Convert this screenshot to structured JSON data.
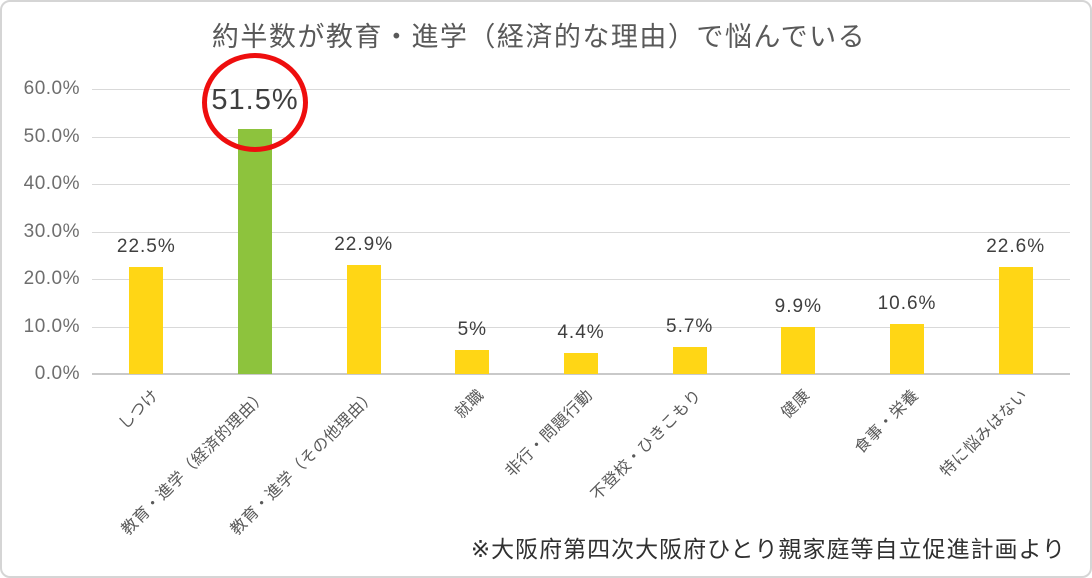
{
  "chart_data": {
    "type": "bar",
    "title": "約半数が教育・進学（経済的な理由）で悩んでいる",
    "categories": [
      "しつけ",
      "教育・進学（経済的理由）",
      "教育・進学（その他理由）",
      "就職",
      "非行・問題行動",
      "不登校・ひきこもり",
      "健康",
      "食事・栄養",
      "特に悩みはない"
    ],
    "values": [
      22.5,
      51.5,
      22.9,
      5,
      4.4,
      5.7,
      9.9,
      10.6,
      22.6
    ],
    "value_labels": [
      "22.5%",
      "51.5%",
      "22.9%",
      "5%",
      "4.4%",
      "5.7%",
      "9.9%",
      "10.6%",
      "22.6%"
    ],
    "highlight_index": 1,
    "annotation": "red circle around the 51.5% value label",
    "y_tick_labels": [
      "60.0%",
      "50.0%",
      "40.0%",
      "30.0%",
      "20.0%",
      "10.0%",
      "0.0%"
    ],
    "y_tick_values": [
      60,
      50,
      40,
      30,
      20,
      10,
      0
    ],
    "ylim": [
      0,
      60
    ],
    "grid": true,
    "legend": "none",
    "source_note": "※大阪府第四次大阪府ひとり親家庭等自立促進計画より",
    "colors": {
      "bar_default": "#FFD615",
      "bar_highlight": "#8DC33D",
      "annotation_circle": "#EE0E0E",
      "gridline": "#D9D9D9",
      "baseline": "#C9C9C9",
      "title_text": "#595959",
      "axis_text": "#6E6E6E",
      "value_text": "#3F3F3F",
      "source_text": "#303030",
      "frame_border": "#D5D5D5"
    }
  }
}
